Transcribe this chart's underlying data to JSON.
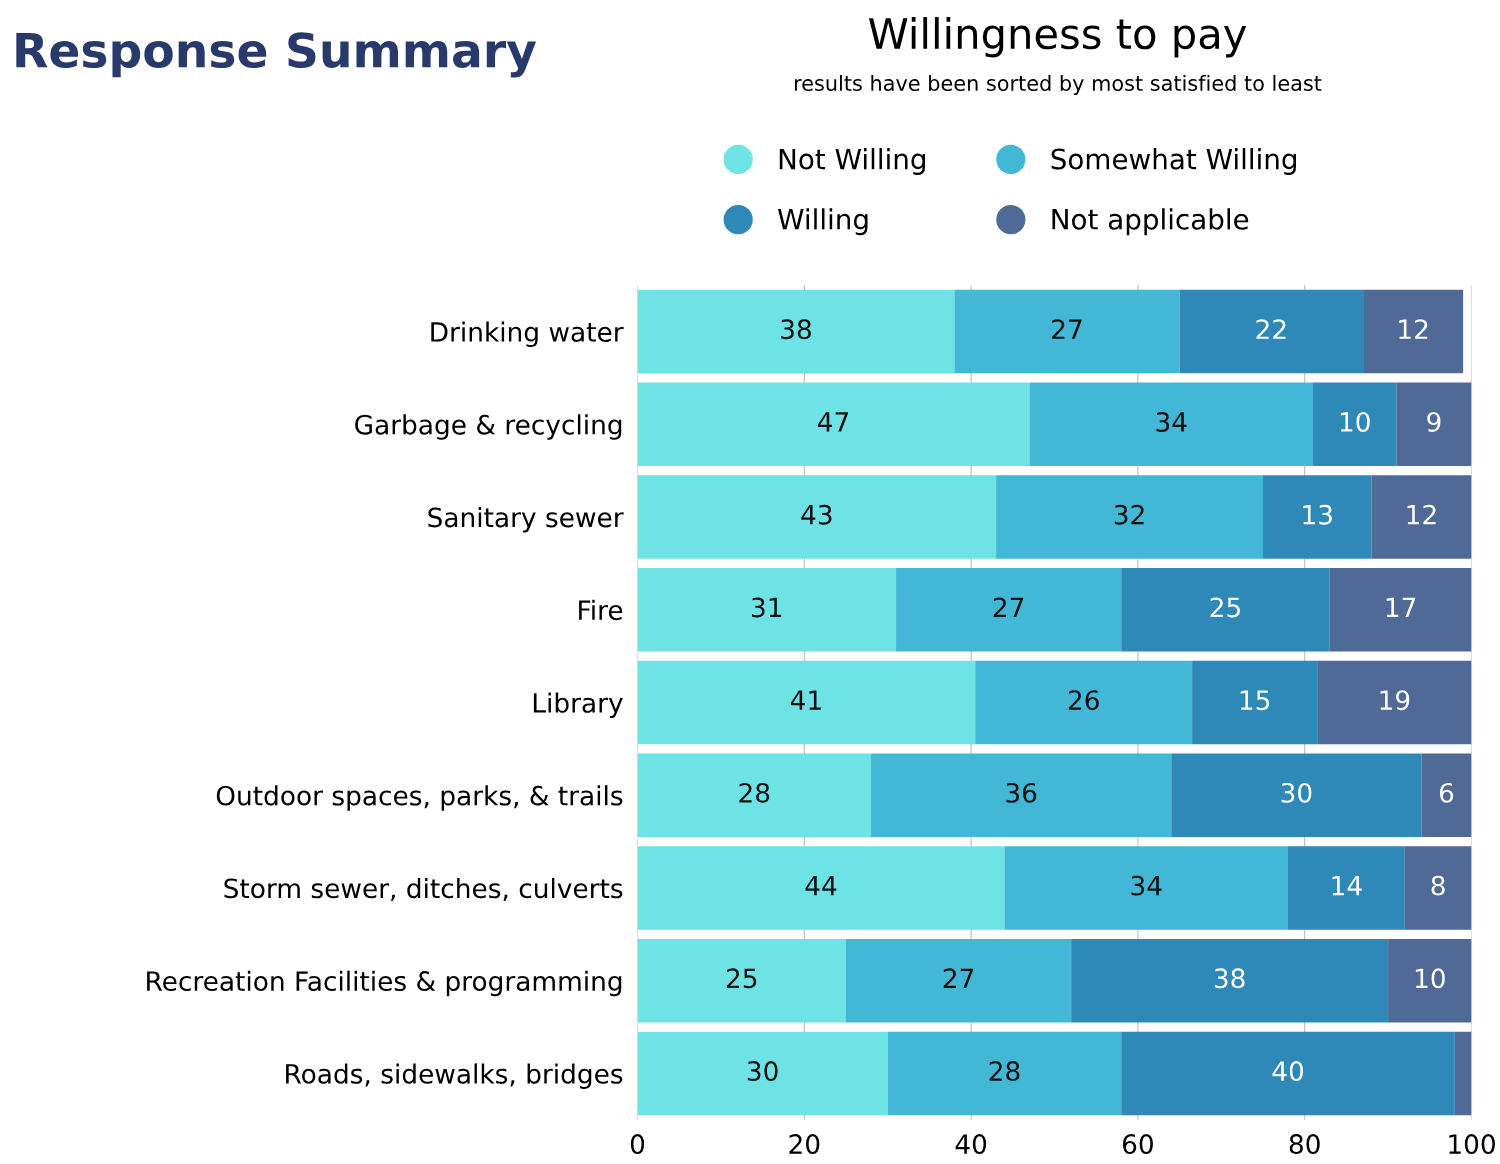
{
  "chart_data": {
    "type": "bar",
    "orientation": "horizontal",
    "stacked": true,
    "title": "Willingness to pay",
    "subtitle": "results have been sorted by most satisfied to least",
    "annotations": [
      "Response Summary"
    ],
    "categories": [
      "Drinking water",
      "Garbage & recycling",
      "Sanitary sewer",
      "Fire",
      "Library",
      "Outdoor spaces, parks, & trails",
      "Storm sewer, ditches, culverts",
      "Recreation Facilities & programming",
      "Roads, sidewalks, bridges"
    ],
    "series": [
      {
        "name": "Not Willing",
        "color": "#6ee3e6",
        "values": [
          38,
          47,
          43,
          31,
          40.5,
          28,
          44,
          25,
          30
        ],
        "value_labels": [
          "38",
          "47",
          "43",
          "31",
          "41",
          "28",
          "44",
          "25",
          "30"
        ]
      },
      {
        "name": "Somewhat Willing",
        "color": "#42b8d6",
        "values": [
          27,
          34,
          32,
          27,
          26,
          36,
          34,
          27,
          28
        ],
        "value_labels": [
          "27",
          "34",
          "32",
          "27",
          "26",
          "36",
          "34",
          "27",
          "28"
        ]
      },
      {
        "name": "Willing",
        "color": "#2e89b8",
        "values": [
          22,
          10,
          13,
          25,
          15,
          30,
          14,
          38,
          40
        ],
        "value_labels": [
          "22",
          "10",
          "13",
          "25",
          "15",
          "30",
          "14",
          "38",
          "40"
        ]
      },
      {
        "name": "Not applicable",
        "color": "#4f6a96",
        "values": [
          12,
          9,
          12,
          17,
          18.5,
          6,
          8,
          10,
          2
        ],
        "value_labels": [
          "12",
          "9",
          "12",
          "17",
          "19",
          "6",
          "8",
          "10",
          null
        ]
      }
    ],
    "xlim": [
      0,
      100
    ],
    "xticks": [
      0,
      20,
      40,
      60,
      80,
      100
    ],
    "grid": "x",
    "legend": "top",
    "marker": "circle"
  }
}
